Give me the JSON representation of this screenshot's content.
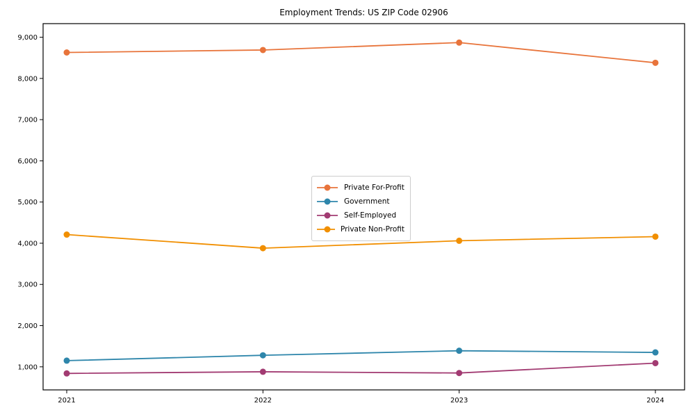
{
  "chart_data": {
    "type": "line",
    "title": "Employment Trends: US ZIP Code 02906",
    "xlabel": "",
    "ylabel": "",
    "x": [
      2021,
      2022,
      2023,
      2024
    ],
    "series": [
      {
        "name": "Private For-Profit",
        "color": "#E8743B",
        "values": [
          8630,
          8690,
          8870,
          8380
        ]
      },
      {
        "name": "Government",
        "color": "#2E86AB",
        "values": [
          1150,
          1280,
          1390,
          1350
        ]
      },
      {
        "name": "Self-Employed",
        "color": "#A23B72",
        "values": [
          840,
          880,
          850,
          1090
        ]
      },
      {
        "name": "Private Non-Profit",
        "color": "#F18F01",
        "values": [
          4210,
          3880,
          4060,
          4160
        ]
      }
    ],
    "yticks": [
      1000,
      2000,
      3000,
      4000,
      5000,
      6000,
      7000,
      8000,
      9000
    ],
    "ytick_labels": [
      "1,000",
      "2,000",
      "3,000",
      "4,000",
      "5,000",
      "6,000",
      "7,000",
      "8,000",
      "9,000"
    ],
    "xtick_labels": [
      "2021",
      "2022",
      "2023",
      "2024"
    ],
    "ylim": [
      440,
      9330
    ],
    "grid": false,
    "legend_position": "center-left-inside",
    "marker": "circle",
    "axis_color": "#000000"
  }
}
